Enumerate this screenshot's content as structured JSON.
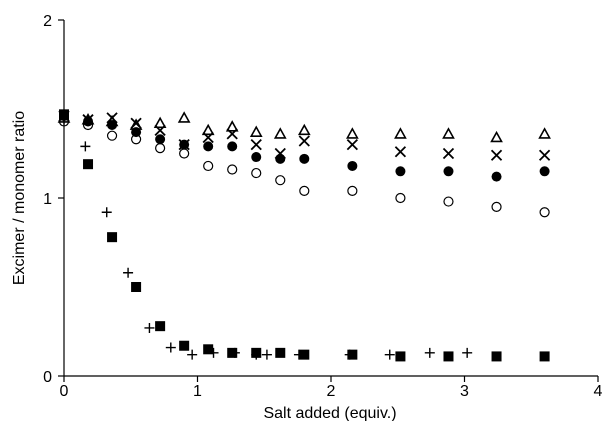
{
  "chart_data": {
    "type": "scatter",
    "title": "",
    "xlabel": "Salt added (equiv.)",
    "ylabel": "Excimer / monomer ratio",
    "xlim": [
      0,
      4
    ],
    "ylim": [
      0,
      2
    ],
    "xticks": [
      0,
      1,
      2,
      3,
      4
    ],
    "yticks": [
      0,
      1,
      2
    ],
    "grid": false,
    "legend": "none",
    "series": [
      {
        "marker": "triangle-open",
        "color": "#000000",
        "x": [
          0,
          0.18,
          0.36,
          0.54,
          0.72,
          0.9,
          1.08,
          1.26,
          1.44,
          1.62,
          1.8,
          2.16,
          2.52,
          2.88,
          3.24,
          3.6
        ],
        "y": [
          1.45,
          1.44,
          1.43,
          1.41,
          1.42,
          1.45,
          1.38,
          1.4,
          1.37,
          1.36,
          1.38,
          1.36,
          1.36,
          1.36,
          1.34,
          1.36
        ]
      },
      {
        "marker": "x",
        "color": "#000000",
        "x": [
          0,
          0.18,
          0.36,
          0.54,
          0.72,
          0.9,
          1.08,
          1.26,
          1.44,
          1.62,
          1.8,
          2.16,
          2.52,
          2.88,
          3.24,
          3.6
        ],
        "y": [
          1.46,
          1.44,
          1.45,
          1.42,
          1.38,
          1.3,
          1.34,
          1.36,
          1.3,
          1.25,
          1.32,
          1.3,
          1.26,
          1.25,
          1.24,
          1.24
        ]
      },
      {
        "marker": "circle-filled",
        "color": "#000000",
        "x": [
          0,
          0.18,
          0.36,
          0.54,
          0.72,
          0.9,
          1.08,
          1.26,
          1.44,
          1.62,
          1.8,
          2.16,
          2.52,
          2.88,
          3.24,
          3.6
        ],
        "y": [
          1.46,
          1.43,
          1.41,
          1.37,
          1.33,
          1.3,
          1.29,
          1.29,
          1.23,
          1.22,
          1.22,
          1.18,
          1.15,
          1.15,
          1.12,
          1.15
        ]
      },
      {
        "marker": "circle-open",
        "color": "#000000",
        "x": [
          0,
          0.18,
          0.36,
          0.54,
          0.72,
          0.9,
          1.08,
          1.26,
          1.44,
          1.62,
          1.8,
          2.16,
          2.52,
          2.88,
          3.24,
          3.6
        ],
        "y": [
          1.43,
          1.41,
          1.35,
          1.33,
          1.28,
          1.25,
          1.18,
          1.16,
          1.14,
          1.1,
          1.04,
          1.04,
          1.0,
          0.98,
          0.95,
          0.92
        ]
      },
      {
        "marker": "plus",
        "color": "#000000",
        "x": [
          0,
          0.16,
          0.32,
          0.48,
          0.64,
          0.8,
          0.96,
          1.12,
          1.28,
          1.44,
          1.52,
          1.76,
          2.14,
          2.44,
          2.74,
          3.02
        ],
        "y": [
          1.44,
          1.29,
          0.92,
          0.58,
          0.27,
          0.16,
          0.12,
          0.13,
          0.13,
          0.12,
          0.12,
          0.12,
          0.12,
          0.12,
          0.13,
          0.13
        ]
      },
      {
        "marker": "square-filled",
        "color": "#000000",
        "x": [
          0,
          0.18,
          0.36,
          0.54,
          0.72,
          0.9,
          1.08,
          1.26,
          1.44,
          1.62,
          1.8,
          2.16,
          2.52,
          2.88,
          3.24,
          3.6
        ],
        "y": [
          1.47,
          1.19,
          0.78,
          0.5,
          0.28,
          0.17,
          0.15,
          0.13,
          0.13,
          0.13,
          0.12,
          0.12,
          0.11,
          0.11,
          0.11,
          0.11
        ]
      }
    ]
  }
}
